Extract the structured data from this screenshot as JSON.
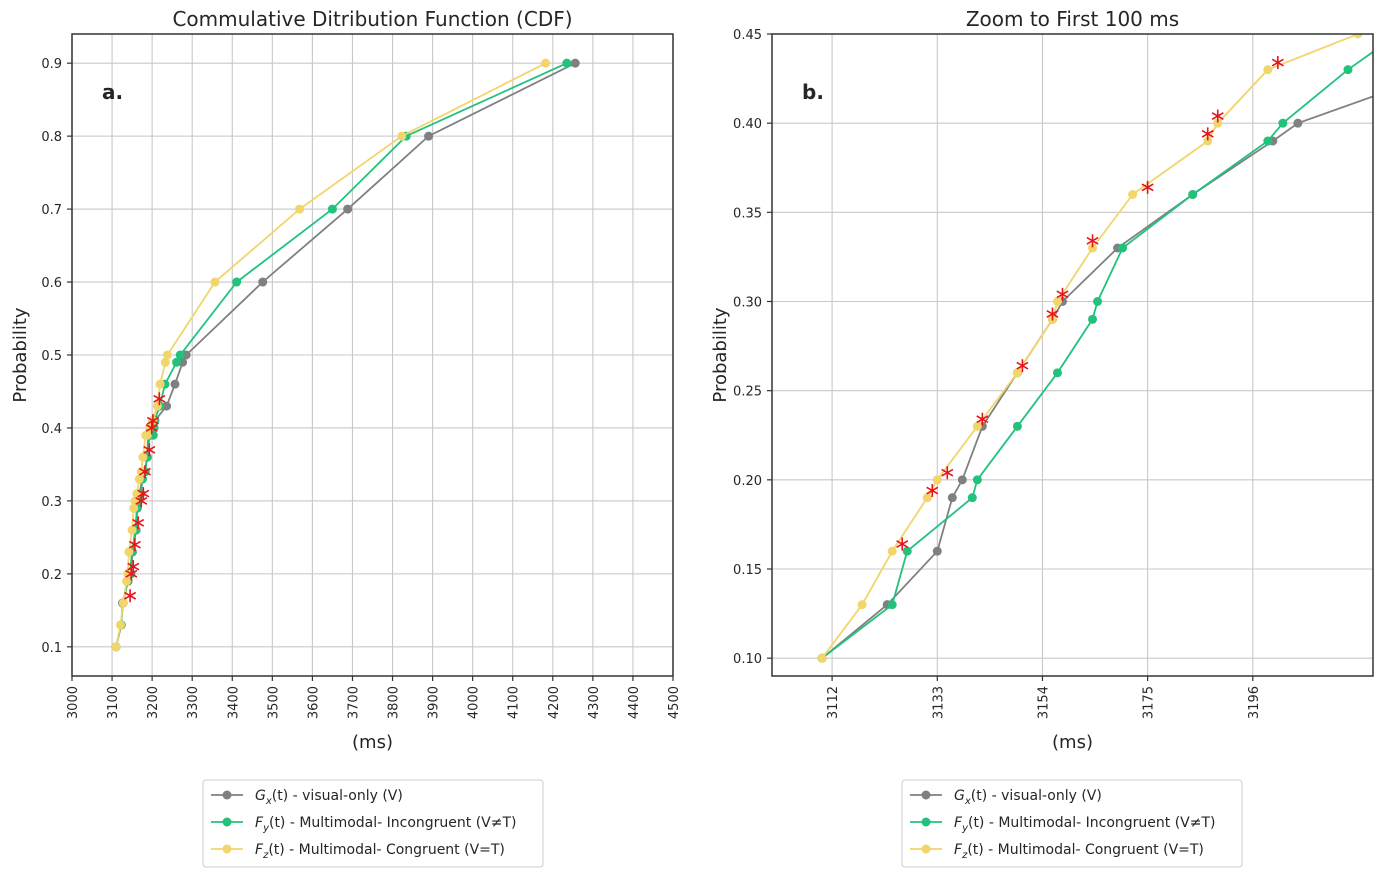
{
  "legend": [
    {
      "sym": "G",
      "sub": "x",
      "suffix": "(t) - visual-only (V)",
      "color": "#808080"
    },
    {
      "sym": "F",
      "sub": "y",
      "suffix": "(t) - Multimodal- Incongruent (V≠T)",
      "color": "#22c27d"
    },
    {
      "sym": "F",
      "sub": "z",
      "suffix": "(t) - Multimodal- Congruent (V=T)",
      "color": "#f2d56b"
    }
  ],
  "colors": {
    "star": "#e8141b",
    "grid": "#c8c8c8",
    "frame": "#333333"
  },
  "chart_data": [
    {
      "type": "line",
      "title": "Commulative Ditribution Function (CDF)",
      "panel_label": "a.",
      "xlabel": "(ms)",
      "ylabel": "Probability",
      "xlim": [
        3000,
        4500
      ],
      "ylim": [
        0.06,
        0.94
      ],
      "xticks": [
        3000,
        3100,
        3200,
        3300,
        3400,
        3500,
        3600,
        3700,
        3800,
        3900,
        4000,
        4100,
        4200,
        4300,
        4400,
        4500
      ],
      "yticks": [
        0.1,
        0.2,
        0.3,
        0.4,
        0.5,
        0.6,
        0.7,
        0.8,
        0.9
      ],
      "ytick_labels": [
        "0.1",
        "0.2",
        "0.3",
        "0.4",
        "0.5",
        "0.6",
        "0.7",
        "0.8",
        "0.9"
      ],
      "x_tick_rotation": -90,
      "grid": true,
      "series": [
        {
          "x": [
            3110,
            3123,
            3126,
            3140,
            3147,
            3151,
            3160,
            3163,
            3165,
            3169,
            3175,
            3182,
            3188,
            3190,
            3195,
            3198,
            3207,
            3236,
            3257,
            3276,
            3285,
            3476,
            3688,
            3890,
            4256
          ],
          "y": [
            0.1,
            0.13,
            0.16,
            0.19,
            0.2,
            0.23,
            0.26,
            0.29,
            0.3,
            0.31,
            0.33,
            0.34,
            0.36,
            0.39,
            0.39,
            0.4,
            0.41,
            0.43,
            0.46,
            0.49,
            0.5,
            0.6,
            0.7,
            0.8,
            0.9
          ]
        },
        {
          "x": [
            3110,
            3122,
            3128,
            3138,
            3144,
            3150,
            3158,
            3162,
            3166,
            3172,
            3176,
            3183,
            3187,
            3194,
            3203,
            3205,
            3206,
            3219,
            3232,
            3261,
            3270,
            3411,
            3650,
            3834,
            4235
          ],
          "y": [
            0.1,
            0.13,
            0.16,
            0.19,
            0.2,
            0.23,
            0.26,
            0.29,
            0.3,
            0.31,
            0.33,
            0.34,
            0.36,
            0.39,
            0.39,
            0.4,
            0.41,
            0.43,
            0.46,
            0.49,
            0.5,
            0.6,
            0.7,
            0.8,
            0.9
          ]
        },
        {
          "x": [
            3110,
            3121,
            3128,
            3136,
            3139,
            3142,
            3150,
            3154,
            3157,
            3162,
            3168,
            3173,
            3177,
            3184,
            3188,
            3193,
            3201,
            3213,
            3220,
            3233,
            3238,
            3357,
            3568,
            3823,
            4182
          ],
          "y": [
            0.1,
            0.13,
            0.16,
            0.19,
            0.2,
            0.23,
            0.26,
            0.29,
            0.3,
            0.31,
            0.33,
            0.34,
            0.36,
            0.39,
            0.39,
            0.4,
            0.41,
            0.43,
            0.46,
            0.49,
            0.5,
            0.6,
            0.7,
            0.8,
            0.9
          ]
        }
      ],
      "markers": {
        "x": [
          3145,
          3148,
          3153,
          3157,
          3165,
          3173,
          3178,
          3182,
          3193,
          3199,
          3202,
          3218
        ],
        "y": [
          0.17,
          0.2,
          0.21,
          0.24,
          0.27,
          0.3,
          0.31,
          0.34,
          0.37,
          0.4,
          0.41,
          0.44
        ]
      }
    },
    {
      "type": "line",
      "title": "Zoom to First 100 ms",
      "panel_label": "b.",
      "xlabel": "(ms)",
      "ylabel": "Probability",
      "xlim": [
        3100,
        3220
      ],
      "ylim": [
        0.09,
        0.45
      ],
      "xticks": [
        3112,
        3133,
        3154,
        3175,
        3196
      ],
      "yticks": [
        0.1,
        0.15,
        0.2,
        0.25,
        0.3,
        0.35,
        0.4,
        0.45
      ],
      "ytick_labels": [
        "0.10",
        "0.15",
        "0.20",
        "0.25",
        "0.30",
        "0.35",
        "0.40",
        "0.45"
      ],
      "x_tick_rotation": -90,
      "grid": true,
      "series": [
        {
          "x": [
            3110,
            3123,
            3133,
            3136,
            3138,
            3142,
            3149,
            3156,
            3158,
            3169,
            3184,
            3200,
            3205,
            3225
          ],
          "y": [
            0.1,
            0.13,
            0.16,
            0.19,
            0.2,
            0.23,
            0.26,
            0.29,
            0.3,
            0.33,
            0.36,
            0.39,
            0.4,
            0.42
          ]
        },
        {
          "x": [
            3110,
            3124,
            3127,
            3140,
            3141,
            3149,
            3157,
            3164,
            3165,
            3170,
            3184,
            3199,
            3202,
            3215,
            3225
          ],
          "y": [
            0.1,
            0.13,
            0.16,
            0.19,
            0.2,
            0.23,
            0.26,
            0.29,
            0.3,
            0.33,
            0.36,
            0.39,
            0.4,
            0.43,
            0.45
          ]
        },
        {
          "x": [
            3110,
            3118,
            3124,
            3131,
            3133,
            3141,
            3149,
            3156,
            3157,
            3164,
            3172,
            3187,
            3189,
            3199,
            3217
          ],
          "y": [
            0.1,
            0.13,
            0.16,
            0.19,
            0.2,
            0.23,
            0.26,
            0.29,
            0.3,
            0.33,
            0.36,
            0.39,
            0.4,
            0.43,
            0.45
          ]
        }
      ],
      "markers": {
        "x": [
          3126,
          3132,
          3135,
          3142,
          3150,
          3156,
          3158,
          3164,
          3175,
          3187,
          3189,
          3201
        ],
        "y": [
          0.164,
          0.194,
          0.204,
          0.234,
          0.264,
          0.293,
          0.304,
          0.334,
          0.364,
          0.394,
          0.404,
          0.434
        ]
      }
    }
  ]
}
